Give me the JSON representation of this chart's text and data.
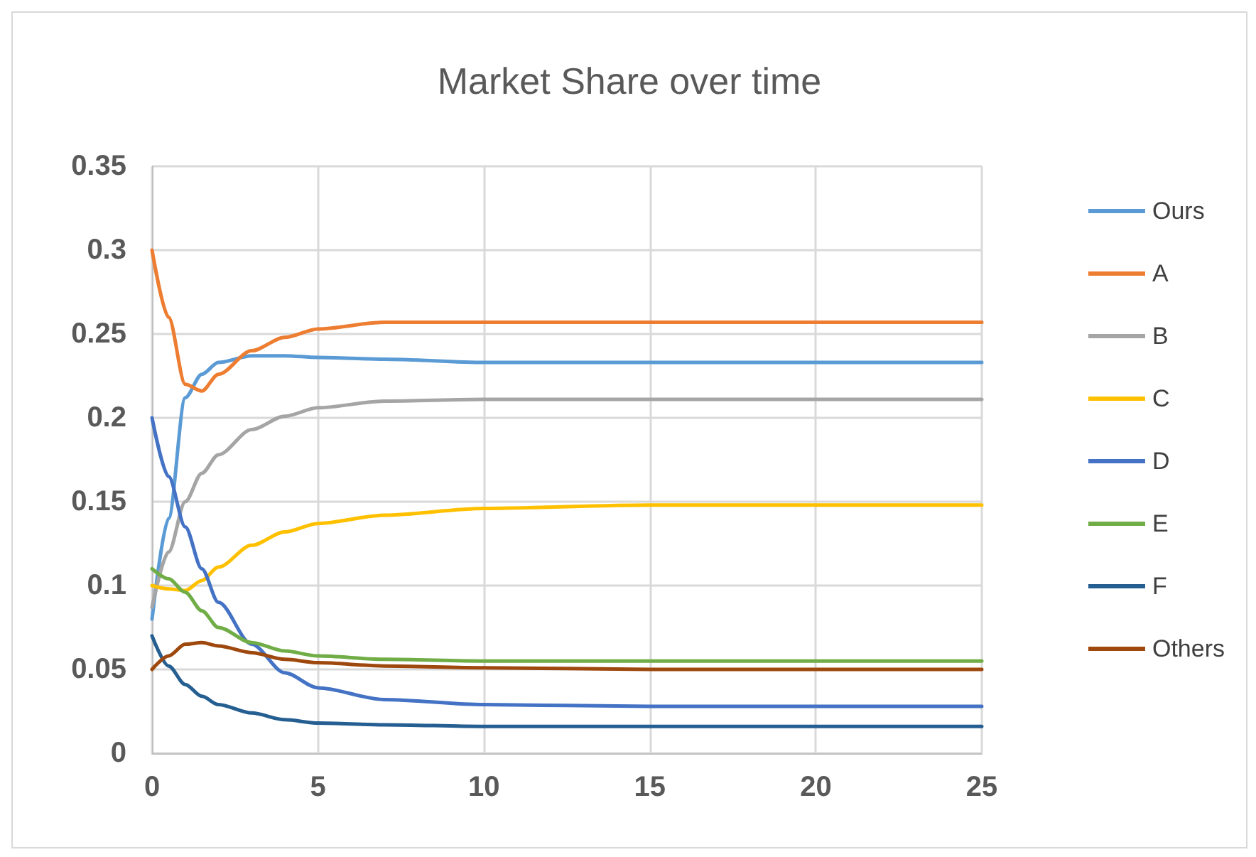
{
  "chart_data": {
    "type": "line",
    "title": "Market Share over time",
    "x": [
      0,
      0.5,
      1,
      1.5,
      2,
      3,
      4,
      5,
      7,
      10,
      15,
      20,
      25
    ],
    "series": [
      {
        "name": "Ours",
        "color": "#5b9bd5",
        "values": [
          0.08,
          0.14,
          0.212,
          0.226,
          0.233,
          0.237,
          0.237,
          0.236,
          0.235,
          0.233,
          0.233,
          0.233,
          0.233
        ]
      },
      {
        "name": "A",
        "color": "#ed7d31",
        "values": [
          0.3,
          0.26,
          0.22,
          0.216,
          0.226,
          0.24,
          0.248,
          0.253,
          0.257,
          0.257,
          0.257,
          0.257,
          0.257
        ]
      },
      {
        "name": "B",
        "color": "#a5a5a5",
        "values": [
          0.087,
          0.12,
          0.15,
          0.167,
          0.178,
          0.193,
          0.201,
          0.206,
          0.21,
          0.211,
          0.211,
          0.211,
          0.211
        ]
      },
      {
        "name": "C",
        "color": "#ffc000",
        "values": [
          0.1,
          0.098,
          0.097,
          0.103,
          0.111,
          0.124,
          0.132,
          0.137,
          0.142,
          0.146,
          0.148,
          0.148,
          0.148
        ]
      },
      {
        "name": "D",
        "color": "#4472c4",
        "values": [
          0.2,
          0.165,
          0.135,
          0.11,
          0.09,
          0.065,
          0.048,
          0.039,
          0.032,
          0.029,
          0.028,
          0.028,
          0.028
        ]
      },
      {
        "name": "E",
        "color": "#70ad47",
        "values": [
          0.11,
          0.104,
          0.096,
          0.085,
          0.075,
          0.066,
          0.061,
          0.058,
          0.056,
          0.055,
          0.055,
          0.055,
          0.055
        ]
      },
      {
        "name": "F",
        "color": "#255e91",
        "values": [
          0.07,
          0.052,
          0.041,
          0.034,
          0.029,
          0.024,
          0.02,
          0.018,
          0.017,
          0.016,
          0.016,
          0.016,
          0.016
        ]
      },
      {
        "name": "Others",
        "color": "#9e480e",
        "values": [
          0.05,
          0.058,
          0.065,
          0.066,
          0.064,
          0.06,
          0.056,
          0.054,
          0.052,
          0.051,
          0.05,
          0.05,
          0.05
        ]
      }
    ],
    "xlim": [
      0,
      25
    ],
    "xticks": [
      0,
      5,
      10,
      15,
      20,
      25
    ],
    "ylim": [
      0,
      0.35
    ],
    "yticks": [
      0,
      0.05,
      0.1,
      0.15,
      0.2,
      0.25,
      0.3,
      0.35
    ],
    "grid": true,
    "legend": "right",
    "marker": "none",
    "line_style": "solid"
  }
}
